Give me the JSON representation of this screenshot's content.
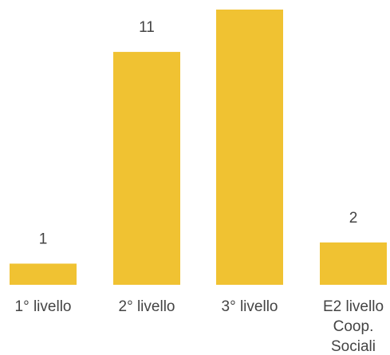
{
  "chart_data": {
    "type": "bar",
    "categories": [
      "1° livello",
      "2° livello",
      "3° livello",
      "E2 livello Coop. Sociali"
    ],
    "category_lines": [
      [
        "1° livello"
      ],
      [
        "2° livello"
      ],
      [
        "3° livello"
      ],
      [
        "E2 livello",
        "Coop.",
        "Sociali"
      ]
    ],
    "values": [
      1,
      11,
      13,
      2
    ],
    "data_labels": [
      "1",
      "11",
      "",
      "2"
    ],
    "title": "",
    "xlabel": "",
    "ylabel": "",
    "ylim": [
      0,
      13
    ],
    "grid": false,
    "legend": "none",
    "colors": {
      "bar": "#F0C232",
      "text": "#444444"
    }
  }
}
